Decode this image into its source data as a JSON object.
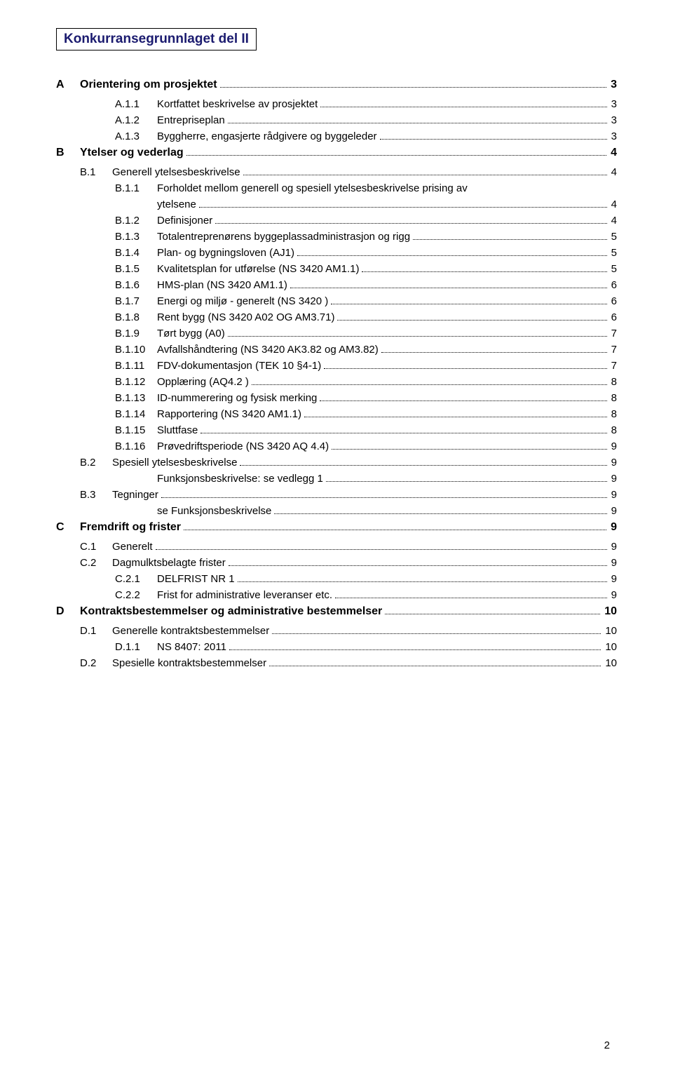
{
  "document": {
    "title": "Konkurransegrunnlaget del II",
    "page_number": "2",
    "colors": {
      "title_text": "#1b1b6f",
      "body_text": "#000000",
      "page_bg": "#ffffff",
      "border": "#000000"
    },
    "typography": {
      "font_family": "Verdana",
      "title_fontsize_pt": 14,
      "body_fontsize_pt": 11
    }
  },
  "toc": [
    {
      "level": "section",
      "letter": "A",
      "num": "",
      "label": "Orientering om prosjektet",
      "page": "3"
    },
    {
      "level": "subsub",
      "letter": "",
      "num": "A.1.1",
      "label": "Kortfattet beskrivelse av prosjektet",
      "page": "3"
    },
    {
      "level": "subsub",
      "letter": "",
      "num": "A.1.2",
      "label": "Entrepriseplan",
      "page": "3"
    },
    {
      "level": "subsub",
      "letter": "",
      "num": "A.1.3",
      "label": "Byggherre, engasjerte rådgivere og byggeleder",
      "page": "3"
    },
    {
      "level": "section",
      "letter": "B",
      "num": "",
      "label": "Ytelser og vederlag",
      "page": "4"
    },
    {
      "level": "sub",
      "letter": "",
      "num": "B.1",
      "label": "Generell ytelsesbeskrivelse",
      "page": "4"
    },
    {
      "level": "subsub",
      "letter": "",
      "num": "B.1.1",
      "label": "Forholdet mellom generell og spesiell ytelsesbeskrivelse prising av ytelsene",
      "page": "4",
      "wrap": true
    },
    {
      "level": "subsub",
      "letter": "",
      "num": "B.1.2",
      "label": "Definisjoner",
      "page": "4"
    },
    {
      "level": "subsub",
      "letter": "",
      "num": "B.1.3",
      "label": "Totalentreprenørens byggeplassadministrasjon og rigg",
      "page": "5"
    },
    {
      "level": "subsub",
      "letter": "",
      "num": "B.1.4",
      "label": "Plan- og bygningsloven (AJ1)",
      "page": "5"
    },
    {
      "level": "subsub",
      "letter": "",
      "num": "B.1.5",
      "label": "Kvalitetsplan for utførelse (NS 3420 AM1.1)",
      "page": "5"
    },
    {
      "level": "subsub",
      "letter": "",
      "num": "B.1.6",
      "label": "HMS-plan (NS 3420 AM1.1)",
      "page": "6"
    },
    {
      "level": "subsub",
      "letter": "",
      "num": "B.1.7",
      "label": "Energi og miljø - generelt (NS 3420 )",
      "page": "6"
    },
    {
      "level": "subsub",
      "letter": "",
      "num": "B.1.8",
      "label": "Rent bygg (NS 3420 A02 OG AM3.71)",
      "page": "6"
    },
    {
      "level": "subsub",
      "letter": "",
      "num": "B.1.9",
      "label": "Tørt bygg (A0)",
      "page": "7"
    },
    {
      "level": "subsub",
      "letter": "",
      "num": "B.1.10",
      "label": "Avfallshåndtering (NS 3420 AK3.82 og AM3.82)",
      "page": "7"
    },
    {
      "level": "subsub",
      "letter": "",
      "num": "B.1.11",
      "label": "FDV-dokumentasjon (TEK 10 §4-1)",
      "page": "7"
    },
    {
      "level": "subsub",
      "letter": "",
      "num": "B.1.12",
      "label": "Opplæring (AQ4.2 )",
      "page": "8"
    },
    {
      "level": "subsub",
      "letter": "",
      "num": "B.1.13",
      "label": "ID-nummerering og fysisk merking",
      "page": "8"
    },
    {
      "level": "subsub",
      "letter": "",
      "num": "B.1.14",
      "label": "Rapportering (NS 3420 AM1.1)",
      "page": "8"
    },
    {
      "level": "subsub",
      "letter": "",
      "num": "B.1.15",
      "label": "Sluttfase",
      "page": "8"
    },
    {
      "level": "subsub",
      "letter": "",
      "num": "B.1.16",
      "label": "Prøvedriftsperiode (NS 3420 AQ 4.4)",
      "page": "9"
    },
    {
      "level": "sub",
      "letter": "",
      "num": "B.2",
      "label": "Spesiell ytelsesbeskrivelse",
      "page": "9"
    },
    {
      "level": "subsub",
      "letter": "",
      "num": "",
      "label": "Funksjonsbeskrivelse:  se vedlegg  1",
      "page": "9"
    },
    {
      "level": "sub",
      "letter": "",
      "num": "B.3",
      "label": "Tegninger",
      "page": "9"
    },
    {
      "level": "subsub",
      "letter": "",
      "num": "",
      "label": "se Funksjonsbeskrivelse",
      "page": "9"
    },
    {
      "level": "section",
      "letter": "C",
      "num": "",
      "label": "Fremdrift og frister",
      "page": "9"
    },
    {
      "level": "sub",
      "letter": "",
      "num": "C.1",
      "label": "Generelt",
      "page": "9"
    },
    {
      "level": "sub",
      "letter": "",
      "num": "C.2",
      "label": "Dagmulktsbelagte frister",
      "page": "9"
    },
    {
      "level": "subsub",
      "letter": "",
      "num": "C.2.1",
      "label": "DELFRIST NR 1",
      "page": "9"
    },
    {
      "level": "subsub",
      "letter": "",
      "num": "C.2.2",
      "label": "Frist for administrative leveranser etc.",
      "page": "9"
    },
    {
      "level": "section",
      "letter": "D",
      "num": "",
      "label": "Kontraktsbestemmelser og administrative bestemmelser",
      "page": "10"
    },
    {
      "level": "sub",
      "letter": "",
      "num": "D.1",
      "label": "Generelle kontraktsbestemmelser",
      "page": "10"
    },
    {
      "level": "subsub",
      "letter": "",
      "num": "D.1.1",
      "label": "NS 8407: 2011",
      "page": "10"
    },
    {
      "level": "sub",
      "letter": "",
      "num": "D.2",
      "label": "Spesielle kontraktsbestemmelser",
      "page": "10"
    }
  ]
}
